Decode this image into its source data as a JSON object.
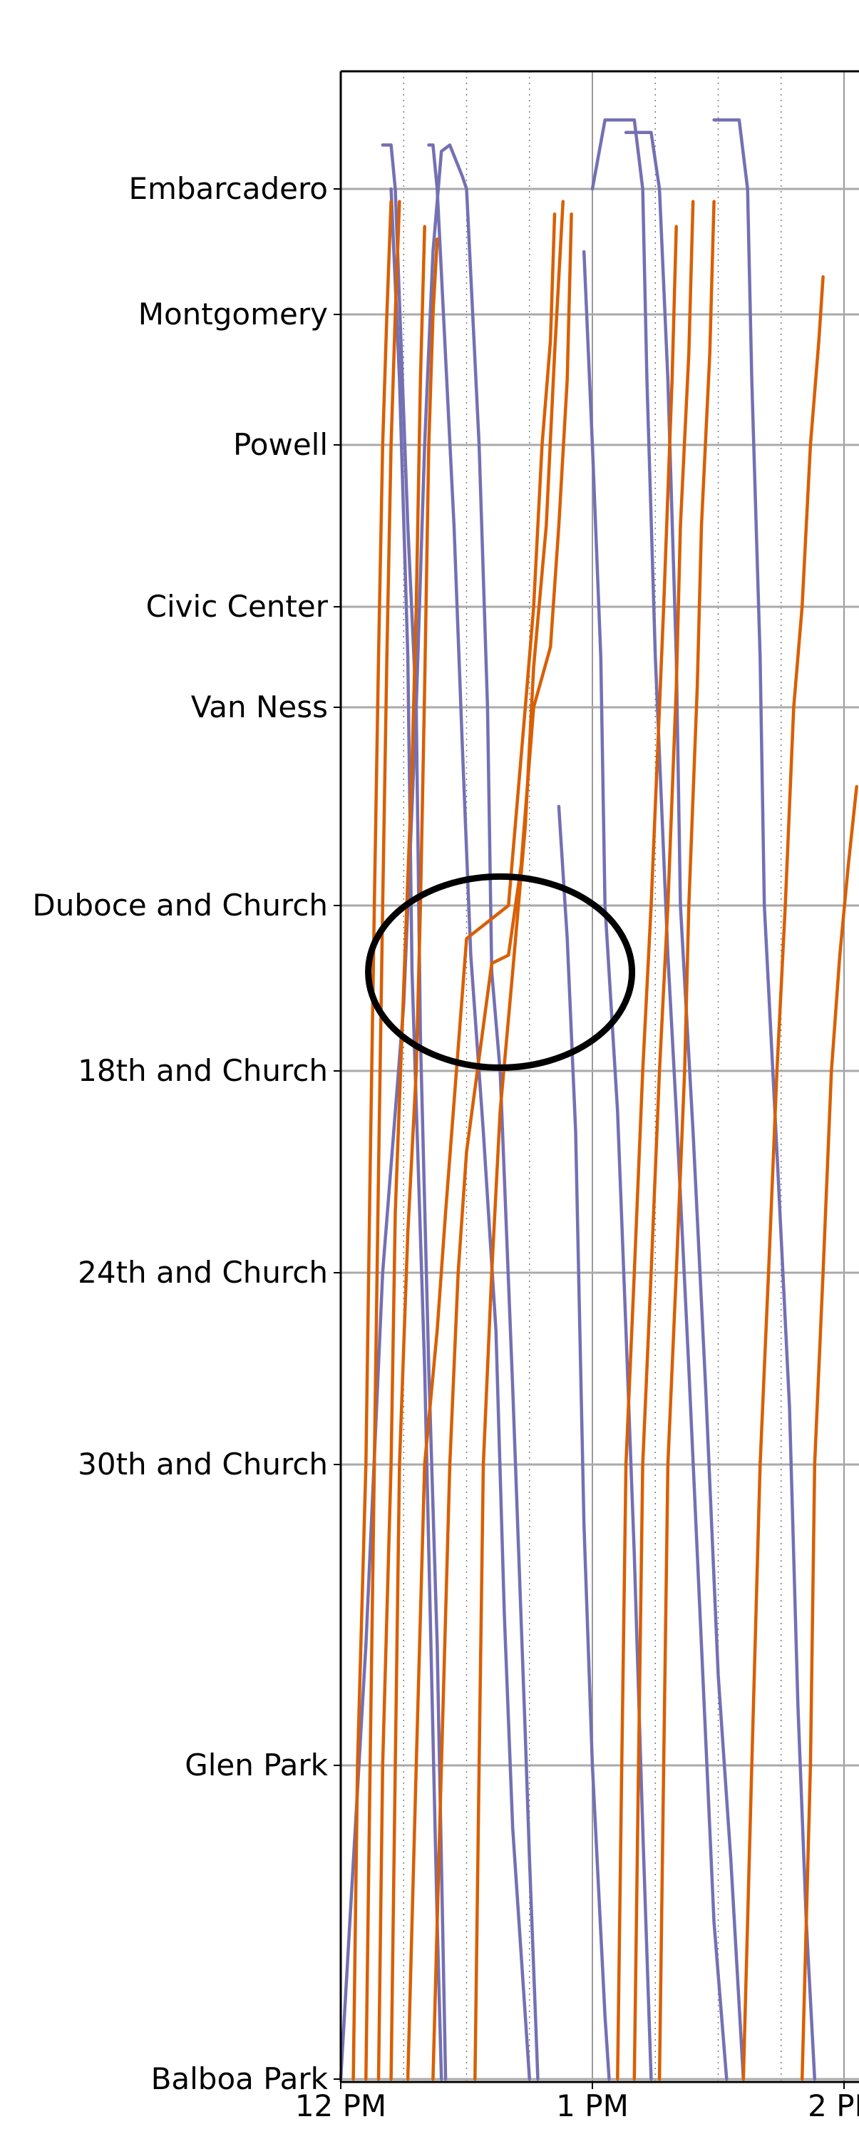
{
  "chart_data": {
    "type": "line",
    "title": "",
    "xlabel": "",
    "ylabel": "",
    "x_ticks": [
      "12 PM",
      "1 PM",
      "2 PM"
    ],
    "x_range_minutes": [
      0,
      124
    ],
    "stations": [
      {
        "name": "Embarcadero",
        "pos": 0
      },
      {
        "name": "Montgomery",
        "pos": 1
      },
      {
        "name": "Powell",
        "pos": 2
      },
      {
        "name": "Civic Center",
        "pos": 3
      },
      {
        "name": "Van Ness",
        "pos": 4
      },
      {
        "name": "Duboce and Church",
        "pos": 5
      },
      {
        "name": "18th and Church",
        "pos": 6
      },
      {
        "name": "24th and Church",
        "pos": 7
      },
      {
        "name": "30th and Church",
        "pos": 8
      },
      {
        "name": "Glen Park",
        "pos": 9
      },
      {
        "name": "Balboa Park",
        "pos": 10
      }
    ],
    "grid": {
      "horizontal_solid": true,
      "vertical_dotted_every_minutes": 15
    },
    "colors": {
      "outbound": "#7570b3",
      "inbound": "#d95f02",
      "annotation": "#000000"
    },
    "series": [
      {
        "direction": "outbound",
        "points": [
          [
            0,
            10
          ],
          [
            6,
            8.6
          ],
          [
            10,
            7.0
          ],
          [
            15,
            5.6
          ],
          [
            18,
            4.0
          ],
          [
            20,
            2.0
          ],
          [
            22,
            0.5
          ],
          [
            24,
            -0.3
          ],
          [
            26,
            -0.35
          ],
          [
            29,
            -0.1
          ],
          [
            30,
            0
          ],
          [
            33,
            2.0
          ],
          [
            35,
            4.0
          ],
          [
            36,
            5.4
          ],
          [
            38,
            6.0
          ],
          [
            41,
            7.6
          ],
          [
            44,
            8.9
          ],
          [
            45,
            9.3
          ],
          [
            47,
            10
          ]
        ]
      },
      {
        "direction": "outbound",
        "points": [
          [
            10,
            -0.35
          ],
          [
            12,
            -0.35
          ],
          [
            13,
            0
          ],
          [
            16,
            2.5
          ],
          [
            18,
            4.0
          ],
          [
            19,
            5.8
          ],
          [
            21,
            7.5
          ],
          [
            23,
            8.6
          ],
          [
            25,
            10
          ]
        ]
      },
      {
        "direction": "outbound",
        "points": [
          [
            12,
            0
          ],
          [
            14,
            1.5
          ],
          [
            16,
            3.5
          ],
          [
            17,
            5.4
          ],
          [
            20,
            7.5
          ],
          [
            23,
            9.5
          ],
          [
            24,
            10
          ]
        ]
      },
      {
        "direction": "outbound",
        "points": [
          [
            21,
            -0.35
          ],
          [
            22,
            -0.35
          ],
          [
            23,
            0
          ],
          [
            27,
            2.5
          ],
          [
            29,
            4.2
          ],
          [
            31,
            5.3
          ],
          [
            34,
            6.3
          ],
          [
            37,
            7.3
          ],
          [
            39,
            8.5
          ],
          [
            41,
            9.2
          ],
          [
            44,
            9.8
          ],
          [
            45,
            10
          ]
        ]
      },
      {
        "direction": "outbound",
        "points": [
          [
            60,
            0
          ],
          [
            63,
            -0.55
          ],
          [
            70,
            -0.55
          ],
          [
            72,
            0
          ],
          [
            73,
            1.5
          ],
          [
            75,
            3.5
          ],
          [
            78,
            5.3
          ],
          [
            80,
            6.2
          ],
          [
            83,
            7.5
          ],
          [
            86,
            8.6
          ],
          [
            89,
            9.5
          ],
          [
            92,
            10
          ]
        ]
      },
      {
        "direction": "outbound",
        "points": [
          [
            68,
            -0.45
          ],
          [
            74,
            -0.45
          ],
          [
            76,
            0
          ],
          [
            78,
            1.5
          ],
          [
            80,
            3.5
          ],
          [
            81,
            5.0
          ],
          [
            84,
            6.3
          ],
          [
            87,
            7.6
          ],
          [
            90,
            8.7
          ],
          [
            93,
            9.3
          ],
          [
            96,
            10
          ]
        ]
      },
      {
        "direction": "outbound",
        "points": [
          [
            89,
            -0.55
          ],
          [
            95,
            -0.55
          ],
          [
            97,
            0
          ],
          [
            98,
            1.5
          ],
          [
            100,
            3.5
          ],
          [
            101,
            5.0
          ],
          [
            104,
            6.4
          ],
          [
            107,
            7.7
          ],
          [
            109,
            8.8
          ],
          [
            111,
            9.5
          ],
          [
            113,
            10
          ]
        ]
      },
      {
        "direction": "outbound",
        "points": [
          [
            52,
            4.5
          ],
          [
            54,
            5.2
          ],
          [
            56,
            6.3
          ],
          [
            57,
            7.3
          ],
          [
            58,
            8.2
          ],
          [
            60,
            9.0
          ],
          [
            63,
            9.8
          ],
          [
            64,
            10
          ]
        ]
      },
      {
        "direction": "outbound",
        "points": [
          [
            58,
            0.5
          ],
          [
            60,
            2.0
          ],
          [
            62,
            3.5
          ],
          [
            63,
            5.0
          ],
          [
            66,
            6.2
          ],
          [
            68,
            7.3
          ],
          [
            70,
            8.3
          ],
          [
            72,
            9.2
          ],
          [
            74,
            10
          ]
        ]
      },
      {
        "direction": "inbound",
        "points": [
          [
            3,
            10
          ],
          [
            4,
            9.0
          ],
          [
            6,
            8.0
          ],
          [
            7,
            6.5
          ],
          [
            8,
            5.0
          ],
          [
            9,
            3.5
          ],
          [
            10,
            2.0
          ],
          [
            11,
            1.0
          ],
          [
            12,
            0.1
          ]
        ]
      },
      {
        "direction": "inbound",
        "points": [
          [
            6,
            10
          ],
          [
            7,
            9.0
          ],
          [
            8,
            8.0
          ],
          [
            9,
            6.5
          ],
          [
            10,
            5.0
          ],
          [
            11,
            3.5
          ],
          [
            12,
            2.0
          ],
          [
            13,
            1.0
          ],
          [
            14,
            0.1
          ]
        ]
      },
      {
        "direction": "inbound",
        "points": [
          [
            9,
            10
          ],
          [
            10,
            9.0
          ],
          [
            12,
            8.0
          ],
          [
            13,
            6.7
          ],
          [
            15,
            5.5
          ],
          [
            17,
            4.3
          ],
          [
            18,
            3.0
          ],
          [
            19,
            1.5
          ],
          [
            20,
            0.3
          ]
        ]
      },
      {
        "direction": "inbound",
        "points": [
          [
            12,
            10
          ],
          [
            13,
            9.0
          ],
          [
            14,
            8.0
          ],
          [
            16,
            6.8
          ],
          [
            18,
            6.0
          ],
          [
            19,
            5.0
          ],
          [
            20,
            3.8
          ],
          [
            21,
            2.0
          ],
          [
            22,
            1.0
          ],
          [
            23,
            0.4
          ]
        ]
      },
      {
        "direction": "inbound",
        "points": [
          [
            16,
            10
          ],
          [
            18,
            9.0
          ],
          [
            20,
            8.0
          ],
          [
            23,
            7.3
          ],
          [
            25,
            6.7
          ],
          [
            30,
            5.2
          ],
          [
            35,
            5.1
          ],
          [
            40,
            5.0
          ],
          [
            44,
            4.0
          ],
          [
            46,
            3.0
          ],
          [
            48,
            2.0
          ],
          [
            50,
            1.2
          ],
          [
            51,
            0.2
          ]
        ]
      },
      {
        "direction": "inbound",
        "points": [
          [
            22,
            10
          ],
          [
            24,
            9.0
          ],
          [
            26,
            8.0
          ],
          [
            28,
            7.0
          ],
          [
            30,
            6.4
          ],
          [
            36,
            5.35
          ],
          [
            40,
            5.3
          ],
          [
            43,
            4.8
          ],
          [
            46,
            4.0
          ],
          [
            50,
            3.4
          ],
          [
            52,
            2.5
          ],
          [
            54,
            1.5
          ],
          [
            55,
            0.2
          ]
        ]
      },
      {
        "direction": "inbound",
        "points": [
          [
            32,
            10
          ],
          [
            33,
            9.0
          ],
          [
            34,
            8.0
          ],
          [
            36,
            7.0
          ],
          [
            38,
            6.2
          ],
          [
            41,
            5.4
          ],
          [
            44,
            4.6
          ],
          [
            46,
            3.6
          ],
          [
            49,
            2.5
          ],
          [
            51,
            1.3
          ],
          [
            53,
            0.1
          ]
        ]
      },
      {
        "direction": "inbound",
        "points": [
          [
            66,
            10
          ],
          [
            67,
            9.0
          ],
          [
            68,
            8.0
          ],
          [
            70,
            7.0
          ],
          [
            72,
            6.0
          ],
          [
            74,
            5.0
          ],
          [
            76,
            4.0
          ],
          [
            77,
            3.0
          ],
          [
            79,
            1.5
          ],
          [
            80,
            0.3
          ]
        ]
      },
      {
        "direction": "inbound",
        "points": [
          [
            70,
            10
          ],
          [
            71,
            9.0
          ],
          [
            72,
            8.0
          ],
          [
            74,
            7.0
          ],
          [
            76,
            6.0
          ],
          [
            78,
            5.0
          ],
          [
            80,
            3.8
          ],
          [
            81,
            2.5
          ],
          [
            83,
            1.3
          ],
          [
            84,
            0.1
          ]
        ]
      },
      {
        "direction": "inbound",
        "points": [
          [
            76,
            10
          ],
          [
            77,
            9.0
          ],
          [
            78,
            8.0
          ],
          [
            80,
            7.0
          ],
          [
            82,
            6.0
          ],
          [
            83,
            5.0
          ],
          [
            85,
            3.8
          ],
          [
            86,
            2.5
          ],
          [
            88,
            1.3
          ],
          [
            89,
            0.1
          ]
        ]
      },
      {
        "direction": "inbound",
        "points": [
          [
            96,
            10
          ],
          [
            98,
            9.0
          ],
          [
            100,
            8.0
          ],
          [
            102,
            7.0
          ],
          [
            104,
            6.0
          ],
          [
            106,
            5.0
          ],
          [
            108,
            4.0
          ],
          [
            110,
            3.0
          ],
          [
            112,
            2.0
          ],
          [
            114,
            1.2
          ],
          [
            115,
            0.7
          ]
        ]
      },
      {
        "direction": "inbound",
        "points": [
          [
            110,
            10
          ],
          [
            112,
            9.0
          ],
          [
            113,
            8.0
          ],
          [
            115,
            7.0
          ],
          [
            117,
            6.0
          ],
          [
            119,
            5.3
          ],
          [
            121,
            4.8
          ],
          [
            123,
            4.4
          ]
        ]
      }
    ],
    "annotations": [
      {
        "shape": "ellipse",
        "center": [
          38,
          5.2
        ],
        "label": ""
      }
    ]
  }
}
